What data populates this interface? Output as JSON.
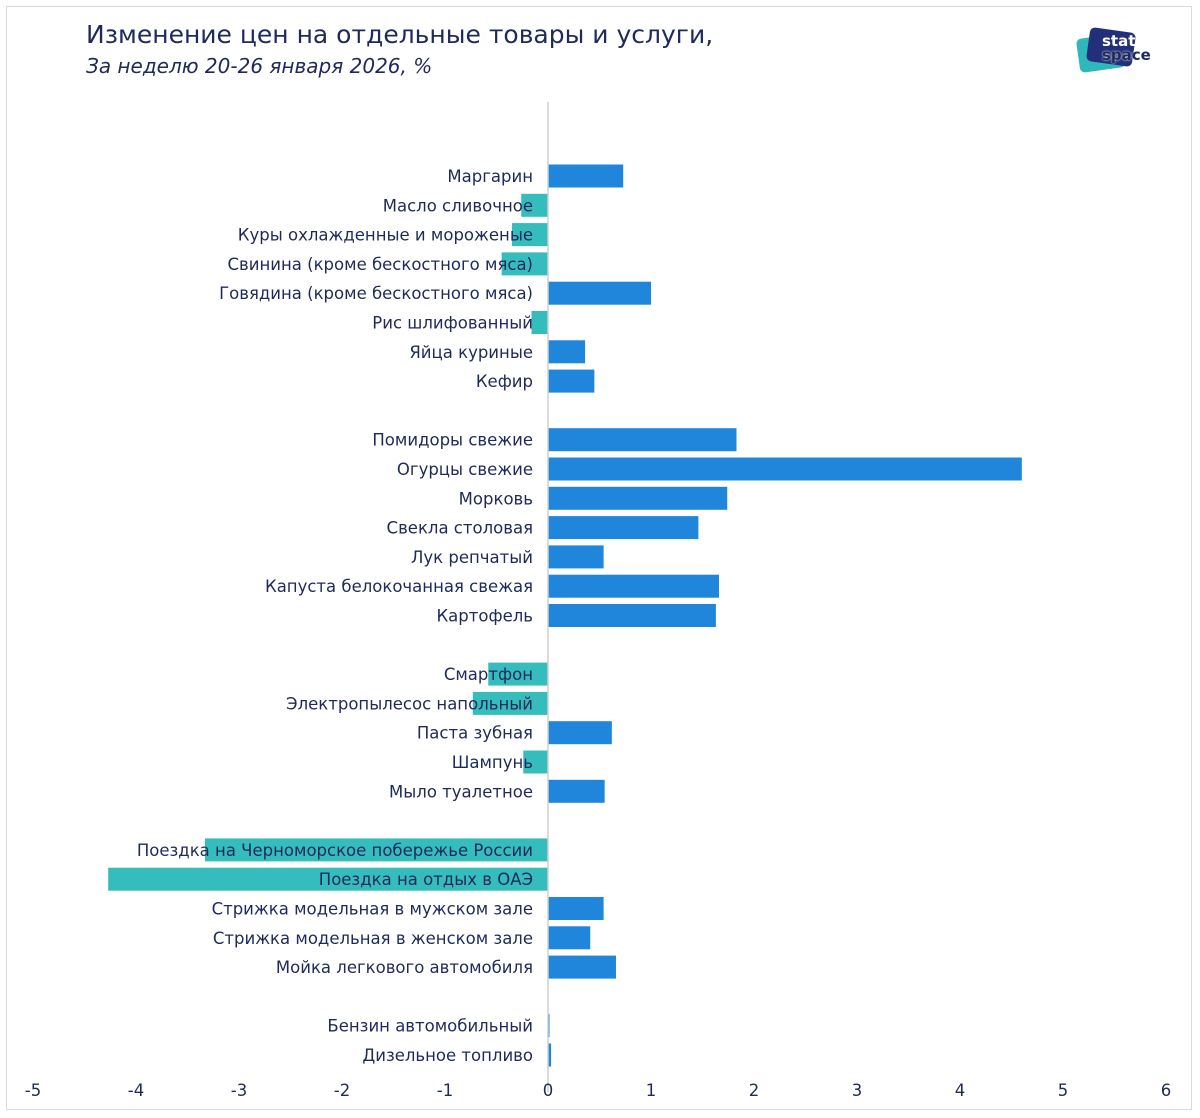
{
  "header": {
    "title": "Изменение цен на отдельные товары и услуги,",
    "subtitle": "За неделю 20-26 января 2026, %",
    "logo_line1": "stat",
    "logo_line2": "space"
  },
  "colors": {
    "positive": "#1f86db",
    "negative": "#35bcbc",
    "text": "#1f2a5a",
    "axis": "#cfcfcf"
  },
  "chart_data": {
    "type": "bar",
    "orientation": "horizontal",
    "title": "Изменение цен на отдельные товары и услуги,",
    "subtitle": "За неделю 20-26 января 2026, %",
    "xlabel": "",
    "ylabel": "",
    "xlim": [
      -5,
      6
    ],
    "xticks": [
      "-5",
      "-4",
      "-3",
      "-2",
      "-1",
      "0",
      "1",
      "2",
      "3",
      "4",
      "5",
      "6"
    ],
    "grid": false,
    "groups": [
      {
        "categories": [
          "Маргарин",
          "Масло сливочное",
          "Куры охлажденные и мороженые",
          "Свинина (кроме бескостного мяса)",
          "Говядина (кроме бескостного мяса)",
          "Рис шлифованный",
          "Яйца куриные",
          "Кефир"
        ],
        "values": [
          0.73,
          -0.26,
          -0.35,
          -0.45,
          1.0,
          -0.16,
          0.36,
          0.45
        ]
      },
      {
        "categories": [
          "Помидоры свежие",
          "Огурцы свежие",
          "Морковь",
          "Свекла столовая",
          "Лук репчатый",
          "Капуста белокочанная свежая",
          "Картофель"
        ],
        "values": [
          1.83,
          4.6,
          1.74,
          1.46,
          0.54,
          1.66,
          1.63
        ]
      },
      {
        "categories": [
          "Смартфон",
          "Электропылесос напольный",
          "Паста зубная",
          "Шампунь",
          "Мыло туалетное"
        ],
        "values": [
          -0.58,
          -0.73,
          0.62,
          -0.24,
          0.55
        ]
      },
      {
        "categories": [
          "Поездка на Черноморское побережье России",
          "Поездка на отдых в ОАЭ",
          "Стрижка модельная в мужском зале",
          "Стрижка модельная в женском зале",
          "Мойка легкового автомобиля"
        ],
        "values": [
          -3.33,
          -4.27,
          0.54,
          0.41,
          0.66
        ]
      },
      {
        "categories": [
          "Бензин автомобильный",
          "Дизельное топливо"
        ],
        "values": [
          0.01,
          0.03
        ]
      }
    ]
  }
}
